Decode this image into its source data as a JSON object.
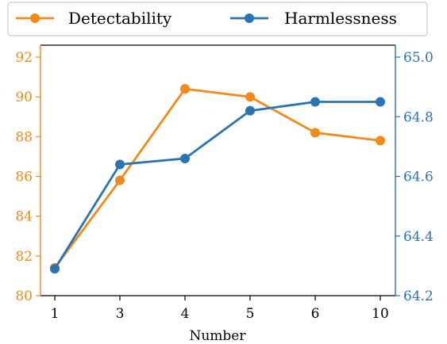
{
  "chart_data": {
    "type": "line",
    "title": "",
    "xlabel": "Number",
    "x": [
      "1",
      "3",
      "4",
      "5",
      "6",
      "10"
    ],
    "y_left": {
      "label": "",
      "range": [
        80,
        92.6
      ],
      "ticks": [
        "80",
        "82",
        "84",
        "86",
        "88",
        "90",
        "92"
      ],
      "color": "#f28a1b"
    },
    "y_right": {
      "label": "",
      "range": [
        64.2,
        65.04
      ],
      "ticks": [
        "64.2",
        "64.4",
        "64.6",
        "64.8",
        "65.0"
      ],
      "color": "#2b74b2"
    },
    "grid": false,
    "legend": {
      "placement": "top",
      "columns": 2
    },
    "series": [
      {
        "name": "Detectability",
        "axis": "left",
        "color": "#f28a1b",
        "values": [
          81.4,
          85.8,
          90.4,
          90.0,
          88.2,
          87.8
        ]
      },
      {
        "name": "Harmlessness",
        "axis": "right",
        "color": "#2b74b2",
        "values": [
          64.29,
          64.64,
          64.66,
          64.82,
          64.85,
          64.85
        ]
      }
    ]
  }
}
